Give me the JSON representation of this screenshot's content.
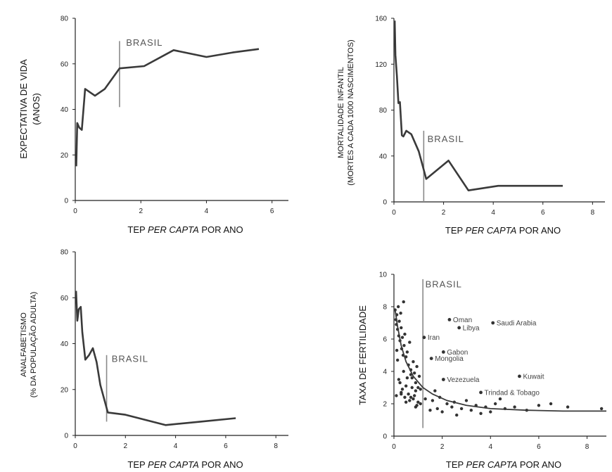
{
  "chart_data": [
    {
      "id": "life",
      "type": "line",
      "ylabel": [
        "EXPECTATIVA DE VIDA",
        "(ANOS)"
      ],
      "xlabel": {
        "pre": "TEP ",
        "italic": "PER CAPTA",
        "post": " POR ANO"
      },
      "xlim": [
        0,
        6.5
      ],
      "ylim": [
        0,
        80
      ],
      "xticks": [
        0,
        2,
        4,
        6
      ],
      "yticks": [
        0,
        20,
        40,
        60,
        80
      ],
      "annotation": {
        "label": "BRASIL",
        "x": 1.35,
        "y0": 41,
        "y1": 70,
        "lx": 1.55,
        "ly": 68
      },
      "series": [
        {
          "x": [
            0.03,
            0.06,
            0.12,
            0.2,
            0.3,
            0.4,
            0.6,
            0.9,
            1.35,
            2.1,
            3.0,
            4.0,
            4.8,
            5.6
          ],
          "y": [
            15,
            34,
            32,
            31,
            49,
            48,
            46,
            49,
            58,
            59,
            66,
            63,
            65,
            66.5
          ]
        }
      ]
    },
    {
      "id": "mortality",
      "type": "line",
      "ylabel": [
        "MORTALIDADE INFANTIL",
        "(MORTES A CADA 1000 NASCIMENTOS)"
      ],
      "xlabel": {
        "pre": "TEP ",
        "italic": "PER CAPTA",
        "post": " POR ANO"
      },
      "xlim": [
        0,
        8.5
      ],
      "ylim": [
        0,
        160
      ],
      "xticks": [
        0,
        2,
        4,
        6,
        8
      ],
      "yticks": [
        0,
        40,
        80,
        120,
        160
      ],
      "annotation": {
        "label": "BRASIL",
        "x": 1.2,
        "y0": 0,
        "y1": 62,
        "lx": 1.35,
        "ly": 52
      },
      "series": [
        {
          "x": [
            0.03,
            0.06,
            0.12,
            0.18,
            0.24,
            0.32,
            0.38,
            0.5,
            0.7,
            1.0,
            1.3,
            2.2,
            3.0,
            4.2,
            5.2,
            6.8
          ],
          "y": [
            158,
            128,
            110,
            86,
            87,
            58,
            57,
            62,
            59,
            44,
            20,
            36,
            10,
            14,
            14,
            14
          ]
        }
      ]
    },
    {
      "id": "illiteracy",
      "type": "line",
      "ylabel": [
        "ANALFABETISMO",
        "(% DA POPULAÇÃO ADULTA)"
      ],
      "xlabel": {
        "pre": "TEP ",
        "italic": "PER CAPTA",
        "post": " POR ANO"
      },
      "xlim": [
        0,
        8.5
      ],
      "ylim": [
        0,
        80
      ],
      "xticks": [
        0,
        2,
        4,
        6,
        8
      ],
      "yticks": [
        0,
        20,
        40,
        60,
        80
      ],
      "annotation": {
        "label": "BRASIL",
        "x": 1.25,
        "y0": 6,
        "y1": 35,
        "lx": 1.45,
        "ly": 32
      },
      "series": [
        {
          "x": [
            0.03,
            0.08,
            0.14,
            0.22,
            0.28,
            0.4,
            0.55,
            0.7,
            0.85,
            1.0,
            1.3,
            2.0,
            3.6,
            5.0,
            6.4
          ],
          "y": [
            63,
            50,
            55,
            56,
            45,
            33,
            35,
            38,
            32,
            22,
            10,
            9,
            4.5,
            6,
            7.5
          ]
        }
      ]
    },
    {
      "id": "fertility",
      "type": "scatter",
      "ylabel": [
        "TAXA DE FERTILIDADE"
      ],
      "xlabel": {
        "pre": "TEP ",
        "italic": "PER CAPTA",
        "post": " POR ANO"
      },
      "xlim": [
        0,
        8.8
      ],
      "ylim": [
        0,
        10
      ],
      "xticks": [
        0,
        2,
        4,
        6,
        8
      ],
      "yticks": [
        0,
        2,
        4,
        6,
        8,
        10
      ],
      "annotation": {
        "label": "BRASIL",
        "x": 1.2,
        "y0": 0.5,
        "y1": 9.7,
        "lx": 1.3,
        "ly": 9.2
      },
      "curve": {
        "x": [
          0.05,
          0.15,
          0.3,
          0.5,
          0.8,
          1.2,
          1.6,
          2.2,
          3.0,
          4.0,
          5.5,
          7.0,
          8.8
        ],
        "y": [
          7.8,
          6.8,
          5.6,
          4.6,
          3.7,
          3.0,
          2.6,
          2.2,
          1.9,
          1.7,
          1.6,
          1.55,
          1.55
        ]
      },
      "labeled_points": [
        {
          "name": "Oman",
          "x": 2.3,
          "y": 7.2
        },
        {
          "name": "Saudi Arabia",
          "x": 4.1,
          "y": 7.0
        },
        {
          "name": "Iran",
          "x": 1.25,
          "y": 6.1
        },
        {
          "name": "Libya",
          "x": 2.7,
          "y": 6.7
        },
        {
          "name": "Gabon",
          "x": 2.05,
          "y": 5.2
        },
        {
          "name": "Mongolia",
          "x": 1.55,
          "y": 4.8
        },
        {
          "name": "Vezezuela",
          "x": 2.05,
          "y": 3.5
        },
        {
          "name": "Kuwait",
          "x": 5.2,
          "y": 3.7
        },
        {
          "name": "Trindad & Tobago",
          "x": 3.6,
          "y": 2.7
        }
      ],
      "points": {
        "x": [
          0.05,
          0.08,
          0.1,
          0.12,
          0.15,
          0.18,
          0.2,
          0.22,
          0.25,
          0.28,
          0.3,
          0.32,
          0.35,
          0.38,
          0.4,
          0.42,
          0.45,
          0.5,
          0.55,
          0.6,
          0.65,
          0.7,
          0.75,
          0.8,
          0.85,
          0.9,
          0.95,
          1.0,
          1.05,
          1.1,
          0.1,
          0.2,
          0.3,
          0.4,
          0.5,
          0.6,
          0.7,
          0.8,
          0.9,
          1.0,
          0.15,
          0.25,
          0.35,
          0.45,
          0.55,
          0.65,
          0.75,
          0.85,
          0.95,
          0.12,
          0.3,
          0.5,
          0.7,
          0.9,
          1.1,
          1.3,
          1.5,
          1.6,
          1.7,
          1.8,
          1.9,
          2.0,
          2.2,
          2.4,
          2.5,
          2.6,
          2.8,
          3.0,
          3.2,
          3.4,
          3.6,
          3.8,
          4.0,
          4.2,
          4.4,
          4.6,
          5.0,
          5.5,
          6.0,
          6.5,
          7.2,
          8.6
        ],
        "y": [
          7.8,
          7.2,
          6.9,
          7.5,
          6.6,
          8.0,
          6.2,
          7.1,
          5.9,
          7.6,
          6.7,
          5.4,
          6.1,
          5.0,
          8.3,
          5.6,
          6.3,
          4.9,
          5.2,
          4.4,
          5.8,
          4.1,
          3.6,
          4.6,
          3.9,
          3.3,
          4.3,
          3.0,
          3.7,
          2.9,
          2.5,
          3.5,
          2.7,
          4.0,
          3.1,
          2.6,
          3.8,
          2.3,
          2.8,
          2.1,
          4.7,
          3.3,
          2.9,
          2.4,
          3.6,
          2.2,
          3.0,
          2.5,
          1.9,
          5.3,
          2.6,
          2.1,
          2.4,
          1.8,
          2.0,
          2.3,
          1.6,
          2.2,
          2.8,
          1.7,
          2.4,
          1.5,
          2.0,
          1.8,
          2.1,
          1.3,
          1.7,
          2.2,
          1.6,
          1.9,
          1.4,
          1.8,
          1.5,
          2.0,
          2.3,
          1.7,
          1.8,
          1.6,
          1.9,
          2.0,
          1.8,
          1.7
        ]
      }
    }
  ],
  "colors": {
    "line": "#3a3a3a",
    "dot": "#333333",
    "marker": "#8a8a8a",
    "axis": "#222222"
  }
}
